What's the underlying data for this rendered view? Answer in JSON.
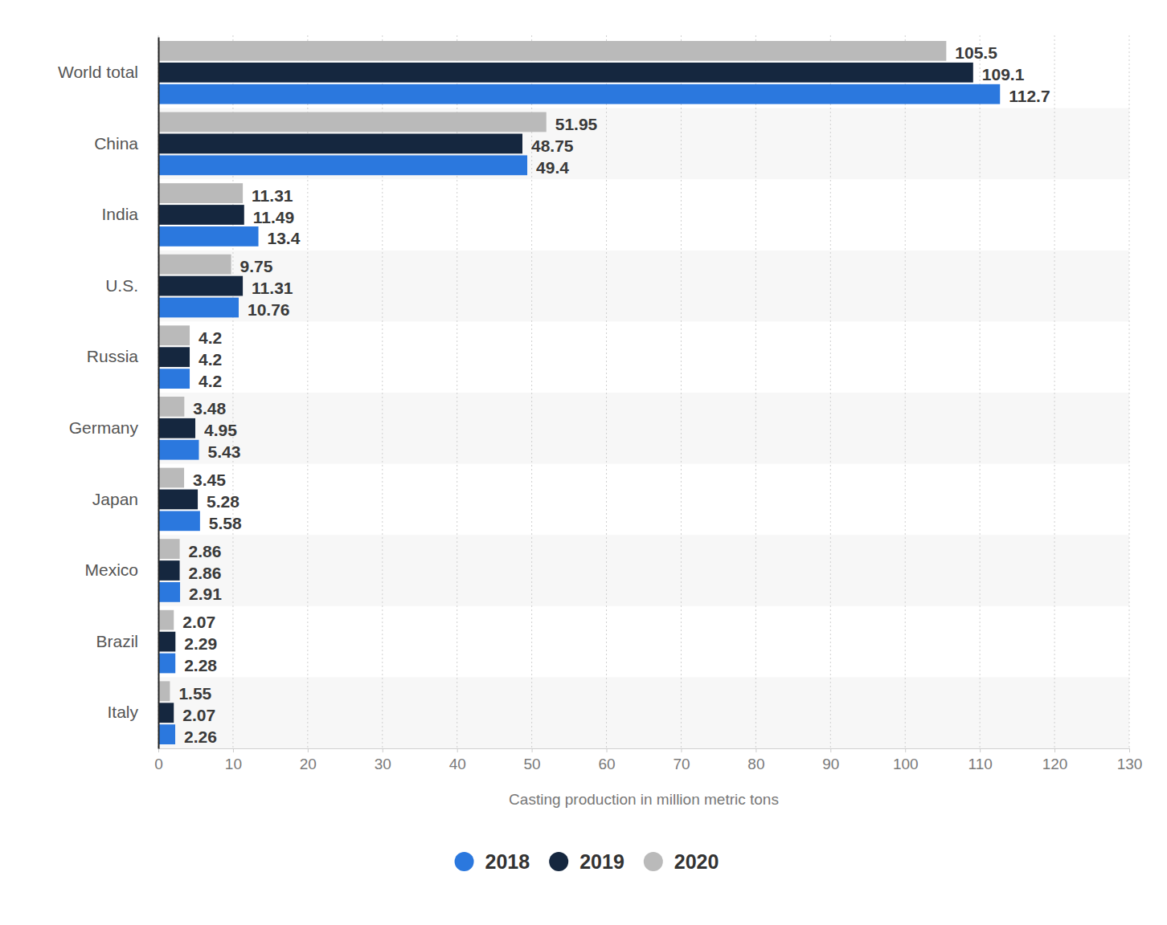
{
  "chart_data": {
    "type": "bar",
    "orientation": "horizontal",
    "xlabel": "Casting production in million metric tons",
    "categories": [
      "World total",
      "China",
      "India",
      "U.S.",
      "Russia",
      "Germany",
      "Japan",
      "Mexico",
      "Brazil",
      "Italy"
    ],
    "series": [
      {
        "name": "2018",
        "color": "#2b78de",
        "values": [
          112.7,
          49.4,
          13.4,
          10.76,
          4.2,
          5.43,
          5.58,
          2.91,
          2.28,
          2.26
        ]
      },
      {
        "name": "2019",
        "color": "#15273f",
        "values": [
          109.1,
          48.75,
          11.49,
          11.31,
          4.2,
          4.95,
          5.28,
          2.86,
          2.29,
          2.07
        ]
      },
      {
        "name": "2020",
        "color": "#bababa",
        "values": [
          105.5,
          51.95,
          11.31,
          9.75,
          4.2,
          3.48,
          3.45,
          2.86,
          2.07,
          1.55
        ]
      }
    ],
    "xlim": [
      0,
      130
    ],
    "xticks": [
      0,
      10,
      20,
      30,
      40,
      50,
      60,
      70,
      80,
      90,
      100,
      110,
      120,
      130
    ],
    "grid": true,
    "data_labels": true,
    "legend": "bottom"
  }
}
